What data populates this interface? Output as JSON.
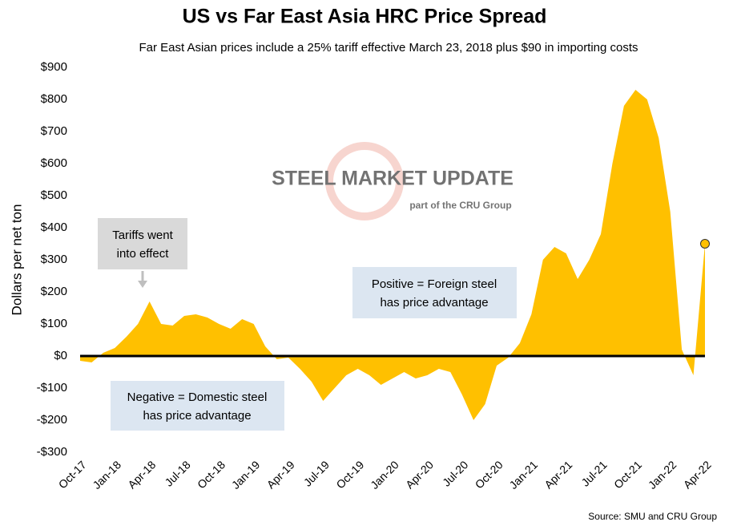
{
  "chart_data": {
    "type": "area",
    "title": "US vs Far East Asia HRC Price Spread",
    "subtitle": "Far East Asian prices include a 25% tariff effective March 23, 2018 plus $90 in importing costs",
    "y_label": "Dollars per net ton",
    "source": "Source: SMU and CRU Group",
    "watermark": [
      "STEEL MARKET UPDATE",
      "part of the CRU Group"
    ],
    "annotations": [
      [
        "Tariffs went",
        "into effect"
      ],
      [
        "Positive = Foreign steel",
        "has price advantage"
      ],
      [
        "Negative = Domestic steel",
        "has price advantage"
      ]
    ],
    "categories": [
      "Oct-17",
      null,
      null,
      "Jan-18",
      null,
      null,
      "Apr-18",
      null,
      null,
      "Jul-18",
      null,
      null,
      "Oct-18",
      null,
      null,
      "Jan-19",
      null,
      null,
      "Apr-19",
      null,
      null,
      "Jul-19",
      null,
      null,
      "Oct-19",
      null,
      null,
      "Jan-20",
      null,
      null,
      "Apr-20",
      null,
      null,
      "Jul-20",
      null,
      null,
      "Oct-20",
      null,
      null,
      "Jan-21",
      null,
      null,
      "Apr-21",
      null,
      null,
      "Jul-21",
      null,
      null,
      "Oct-21",
      null,
      null,
      "Jan-22",
      null,
      null,
      "Apr-22"
    ],
    "series": [
      {
        "name": "Spread",
        "color": "#ffc000",
        "values": [
          -15,
          -20,
          10,
          25,
          60,
          100,
          170,
          100,
          95,
          125,
          130,
          120,
          100,
          85,
          115,
          100,
          30,
          -10,
          -5,
          -40,
          -80,
          -140,
          -100,
          -60,
          -40,
          -60,
          -90,
          -70,
          -50,
          -70,
          -60,
          -40,
          -50,
          -120,
          -200,
          -150,
          -30,
          -5,
          40,
          130,
          300,
          340,
          320,
          240,
          300,
          380,
          600,
          780,
          830,
          800,
          680,
          450,
          20,
          -60,
          350
        ]
      }
    ],
    "ylim": [
      -300,
      900
    ],
    "yticks": [
      {
        "value": -300,
        "label": "-$300"
      },
      {
        "value": -200,
        "label": "-$200"
      },
      {
        "value": -100,
        "label": "-$100"
      },
      {
        "value": 0,
        "label": "$0"
      },
      {
        "value": 100,
        "label": "$100"
      },
      {
        "value": 200,
        "label": "$200"
      },
      {
        "value": 300,
        "label": "$300"
      },
      {
        "value": 400,
        "label": "$400"
      },
      {
        "value": 500,
        "label": "$500"
      },
      {
        "value": 600,
        "label": "$600"
      },
      {
        "value": 700,
        "label": "$700"
      },
      {
        "value": 800,
        "label": "$800"
      },
      {
        "value": 900,
        "label": "$900"
      }
    ],
    "grid": false
  }
}
